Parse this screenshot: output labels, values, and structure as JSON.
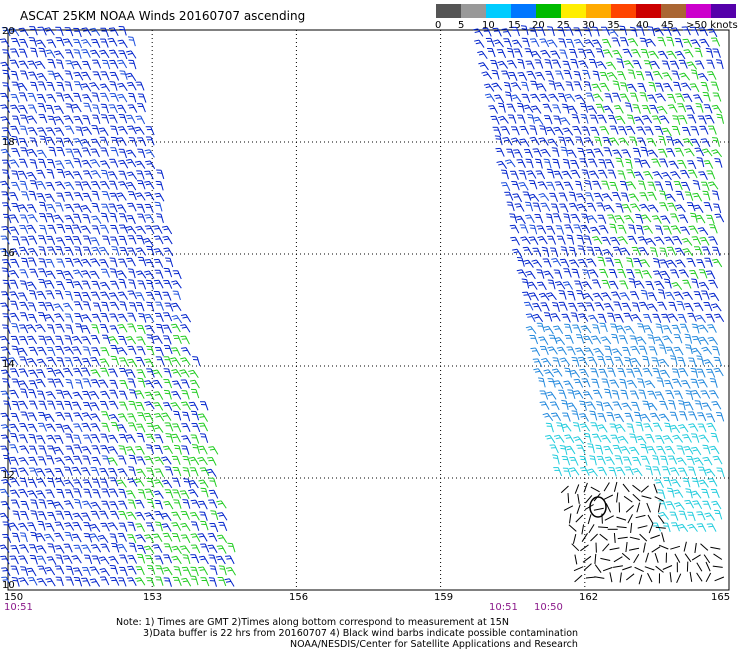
{
  "title": "ASCAT 25KM NOAA Winds 20160707 ascending",
  "legend": {
    "labels": [
      "0",
      "5",
      "10",
      "15",
      "20",
      "25",
      "30",
      "35",
      "40",
      "45",
      ">50 knots"
    ],
    "colors": [
      "#555555",
      "#999999",
      "#00ccff",
      "#0077ff",
      "#00bb00",
      "#ffee00",
      "#ffaa00",
      "#ff4400",
      "#cc0000",
      "#aa6633",
      "#cc00cc",
      "#5500aa"
    ]
  },
  "map": {
    "lat_labels": [
      "20",
      "18",
      "16",
      "14",
      "12",
      "10"
    ],
    "lon_labels": [
      "150",
      "153",
      "156",
      "159",
      "162",
      "165"
    ],
    "times": [
      "10:51",
      "10:51",
      "10:50"
    ]
  },
  "notes": {
    "line1": "Note: 1) Times are GMT 2)Times along bottom correspond to measurement at 15N",
    "line2": "3)Data buffer is 22 hrs from 20160707 4) Black wind barbs indicate possible contamination",
    "line3": "NOAA/NESDIS/Center for Satellite Applications and Research"
  }
}
